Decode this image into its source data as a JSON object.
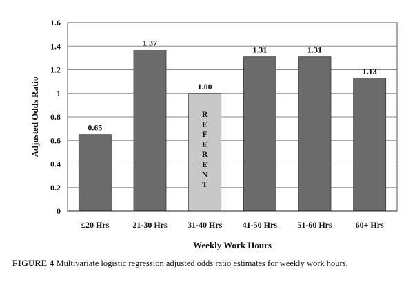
{
  "chart_data": {
    "type": "bar",
    "categories": [
      "≤20 Hrs",
      "21-30 Hrs",
      "31-40 Hrs",
      "41-50 Hrs",
      "51-60 Hrs",
      "60+ Hrs"
    ],
    "values": [
      0.65,
      1.37,
      1.0,
      1.31,
      1.31,
      1.13
    ],
    "data_labels": [
      "0.65",
      "1.37",
      "1.00",
      "1.31",
      "1.31",
      "1.13"
    ],
    "reference_index": 2,
    "reference_text": "REFERENT",
    "xlabel": "Weekly Work Hours",
    "ylabel": "Adjusted Odds Ratio",
    "ylim": [
      0,
      1.6
    ],
    "yticks": [
      0,
      0.2,
      0.4,
      0.6,
      0.8,
      1,
      1.2,
      1.4,
      1.6
    ],
    "ytick_labels": [
      "0",
      "0.2",
      "0.4",
      "0.6",
      "0.8",
      "1",
      "1.2",
      "1.4",
      "1.6"
    ],
    "grid": true,
    "colors": {
      "bar": "#6b6b6b",
      "reference_bar": "#c8c8c8",
      "grid": "#8a8a8a",
      "border": "#555555"
    }
  },
  "caption": {
    "label": "FIGURE 4",
    "text": "Multivariate logistic regression adjusted odds ratio estimates for weekly work hours."
  }
}
